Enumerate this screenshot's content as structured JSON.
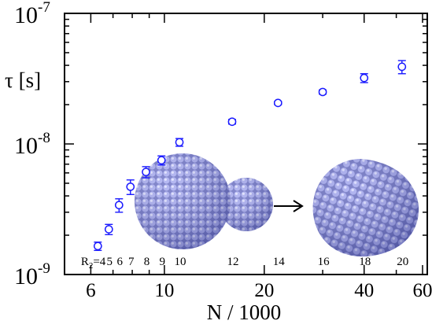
{
  "chart_data": {
    "type": "scatter",
    "xlabel": "N / 1000",
    "ylabel": "τ [s]",
    "x_scale": "log",
    "y_scale": "log",
    "xlim": [
      5,
      62
    ],
    "ylim": [
      1e-09,
      1e-07
    ],
    "x_ticks": [
      {
        "value": 6,
        "label": "6"
      },
      {
        "value": 10,
        "label": "10"
      },
      {
        "value": 20,
        "label": "20"
      },
      {
        "value": 40,
        "label": "40"
      },
      {
        "value": 60,
        "label": "60"
      }
    ],
    "y_ticks": [
      {
        "value": 1e-09,
        "base": "10",
        "exp": "-9"
      },
      {
        "value": 1e-08,
        "base": "10",
        "exp": "-8"
      },
      {
        "value": 1e-07,
        "base": "10",
        "exp": "-7"
      }
    ],
    "marker_color": "#1a1aff",
    "series": [
      {
        "marker": "open-circle",
        "points": [
          {
            "x": 6.3,
            "y": 1.65e-09,
            "err": 1.2e-10
          },
          {
            "x": 6.8,
            "y": 2.22e-09,
            "err": 2e-10
          },
          {
            "x": 7.3,
            "y": 3.4e-09,
            "err": 4e-10
          },
          {
            "x": 7.9,
            "y": 4.7e-09,
            "err": 6e-10
          },
          {
            "x": 8.8,
            "y": 6.1e-09,
            "err": 6e-10
          },
          {
            "x": 9.8,
            "y": 7.5e-09,
            "err": 6e-10
          },
          {
            "x": 11.1,
            "y": 1.03e-08,
            "err": 7e-10
          },
          {
            "x": 16.0,
            "y": 1.48e-08,
            "err": 6e-10
          },
          {
            "x": 22.0,
            "y": 2.06e-08,
            "err": 6e-10
          },
          {
            "x": 30.0,
            "y": 2.5e-08,
            "err": 9e-10
          },
          {
            "x": 40.0,
            "y": 3.2e-08,
            "err": 2.5e-09
          },
          {
            "x": 52.0,
            "y": 3.9e-08,
            "err": 4.5e-09
          }
        ]
      }
    ],
    "r2_labels": {
      "prefix": "R",
      "subscript": "2",
      "items": [
        {
          "x": 6.3,
          "label": "=4"
        },
        {
          "x": 6.8,
          "label": "5"
        },
        {
          "x": 7.3,
          "label": "6"
        },
        {
          "x": 7.9,
          "label": "7"
        },
        {
          "x": 8.8,
          "label": "8"
        },
        {
          "x": 9.8,
          "label": "9"
        },
        {
          "x": 11.1,
          "label": "10"
        },
        {
          "x": 16.0,
          "label": "12"
        },
        {
          "x": 22.0,
          "label": "14"
        },
        {
          "x": 30.0,
          "label": "16"
        },
        {
          "x": 40.0,
          "label": "18"
        },
        {
          "x": 52.0,
          "label": "20"
        }
      ]
    },
    "inset": {
      "description_colors": {
        "sphere": "#9a9ee6",
        "sphere_dark": "#5a5fb0"
      },
      "arrow_color": "#000000"
    }
  }
}
